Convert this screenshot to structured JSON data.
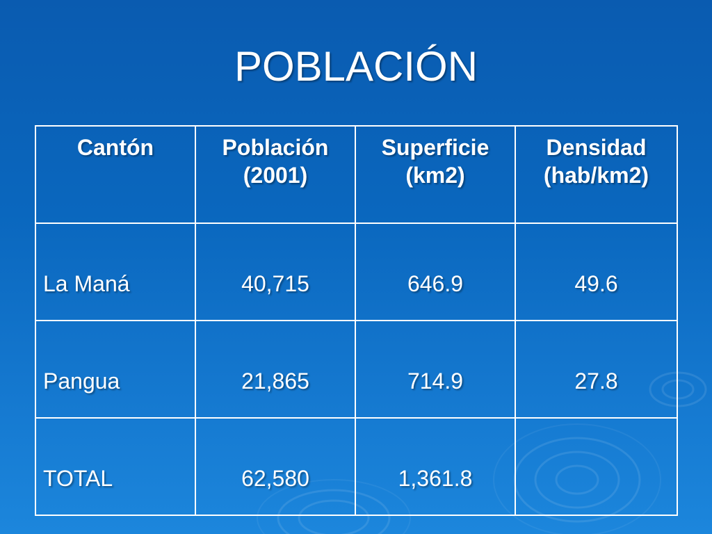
{
  "slide": {
    "title": "POBLACIÓN"
  },
  "table": {
    "headers": [
      {
        "line1": "Cantón",
        "line2": ""
      },
      {
        "line1": "Población",
        "line2": "(2001)"
      },
      {
        "line1": "Superficie",
        "line2": "(km2)"
      },
      {
        "line1": "Densidad",
        "line2": "(hab/km2)"
      }
    ],
    "rows": [
      {
        "canton": "La Maná",
        "poblacion": "40,715",
        "superficie": "646.9",
        "densidad": "49.6"
      },
      {
        "canton": "Pangua",
        "poblacion": "21,865",
        "superficie": "714.9",
        "densidad": "27.8"
      },
      {
        "canton": "TOTAL",
        "poblacion": "62,580",
        "superficie": "1,361.8",
        "densidad": ""
      }
    ]
  },
  "theme": {
    "background_top": "#0a5bb0",
    "background_bottom": "#1c86dc",
    "text_color": "#ffffff",
    "border_color": "#ffffff"
  }
}
